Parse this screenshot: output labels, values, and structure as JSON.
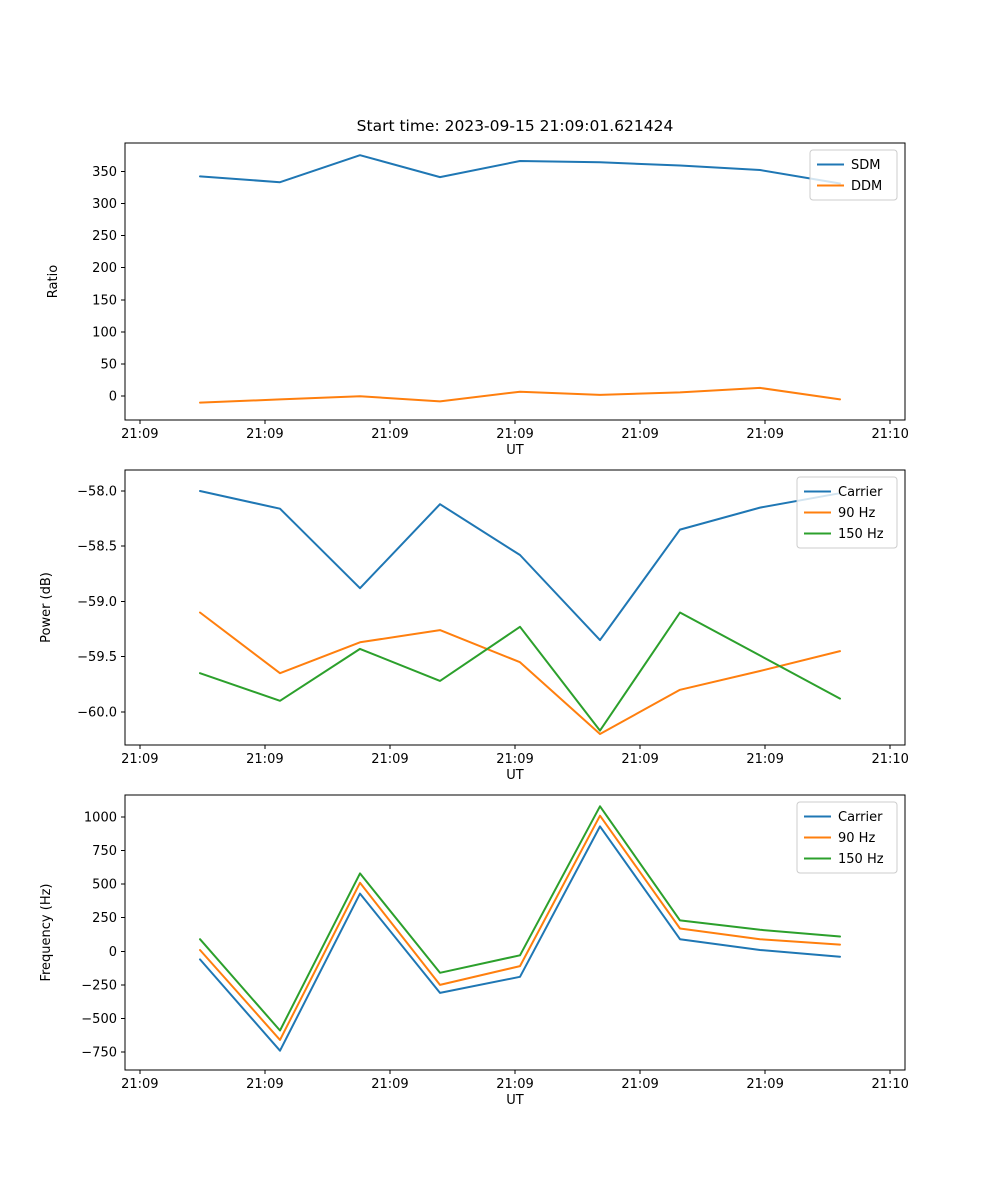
{
  "chart_data": [
    {
      "type": "line",
      "title": "Start time: 2023-09-15 21:09:01.621424",
      "xlabel": "UT",
      "ylabel": "Ratio",
      "x_tick_labels": [
        "21:09",
        "21:09",
        "21:09",
        "21:09",
        "21:09",
        "21:09",
        "21:10"
      ],
      "y_tick_values": [
        350,
        300,
        250,
        200,
        150,
        100,
        50,
        0
      ],
      "y_tick_labels": [
        "350",
        "300",
        "250",
        "200",
        "150",
        "100",
        "50",
        "0"
      ],
      "ylim": [
        -37,
        394
      ],
      "grid": false,
      "legend": {
        "position": "upper right",
        "labels": [
          "SDM",
          "DDM"
        ]
      },
      "series": [
        {
          "name": "SDM",
          "color": "#1f77b4",
          "values": [
            342,
            333,
            375,
            341,
            366,
            364,
            359,
            352,
            331
          ]
        },
        {
          "name": "DDM",
          "color": "#ff7f0e",
          "values": [
            -10,
            -5,
            0,
            -8,
            7,
            2,
            6,
            13,
            -5
          ]
        }
      ]
    },
    {
      "type": "line",
      "title": "",
      "xlabel": "UT",
      "ylabel": "Power (dB)",
      "x_tick_labels": [
        "21:09",
        "21:09",
        "21:09",
        "21:09",
        "21:09",
        "21:09",
        "21:10"
      ],
      "y_tick_values": [
        -58.0,
        -58.5,
        -59.0,
        -59.5,
        -60.0
      ],
      "y_tick_labels": [
        "−58.0",
        "−58.5",
        "−59.0",
        "−59.5",
        "−60.0"
      ],
      "ylim": [
        -60.3,
        -57.81
      ],
      "grid": false,
      "legend": {
        "position": "upper right",
        "labels": [
          "Carrier",
          "90 Hz",
          "150 Hz"
        ]
      },
      "series": [
        {
          "name": "Carrier",
          "color": "#1f77b4",
          "values": [
            -58.0,
            -58.16,
            -58.88,
            -58.12,
            -58.58,
            -59.35,
            -58.35,
            -58.15,
            -58.02
          ]
        },
        {
          "name": "90 Hz",
          "color": "#ff7f0e",
          "values": [
            -59.1,
            -59.65,
            -59.37,
            -59.26,
            -59.55,
            -60.2,
            -59.8,
            -59.63,
            -59.45
          ]
        },
        {
          "name": "150 Hz",
          "color": "#2ca02c",
          "values": [
            -59.65,
            -59.9,
            -59.43,
            -59.72,
            -59.23,
            -60.17,
            -59.1,
            -59.49,
            -59.88
          ]
        }
      ]
    },
    {
      "type": "line",
      "title": "",
      "xlabel": "UT",
      "ylabel": "Frequency (Hz)",
      "x_tick_labels": [
        "21:09",
        "21:09",
        "21:09",
        "21:09",
        "21:09",
        "21:09",
        "21:10"
      ],
      "y_tick_values": [
        1000,
        750,
        500,
        250,
        0,
        -250,
        -500,
        -750
      ],
      "y_tick_labels": [
        "1000",
        "750",
        "500",
        "250",
        "0",
        "−250",
        "−500",
        "−750"
      ],
      "ylim": [
        -884,
        1164
      ],
      "grid": false,
      "legend": {
        "position": "upper right",
        "labels": [
          "Carrier",
          "90 Hz",
          "150 Hz"
        ]
      },
      "series": [
        {
          "name": "Carrier",
          "color": "#1f77b4",
          "values": [
            -60,
            -740,
            430,
            -310,
            -190,
            930,
            90,
            10,
            -40
          ]
        },
        {
          "name": "90 Hz",
          "color": "#ff7f0e",
          "values": [
            10,
            -660,
            510,
            -250,
            -110,
            1010,
            170,
            90,
            50
          ]
        },
        {
          "name": "150 Hz",
          "color": "#2ca02c",
          "values": [
            90,
            -590,
            580,
            -160,
            -30,
            1080,
            230,
            160,
            110
          ]
        }
      ]
    }
  ]
}
